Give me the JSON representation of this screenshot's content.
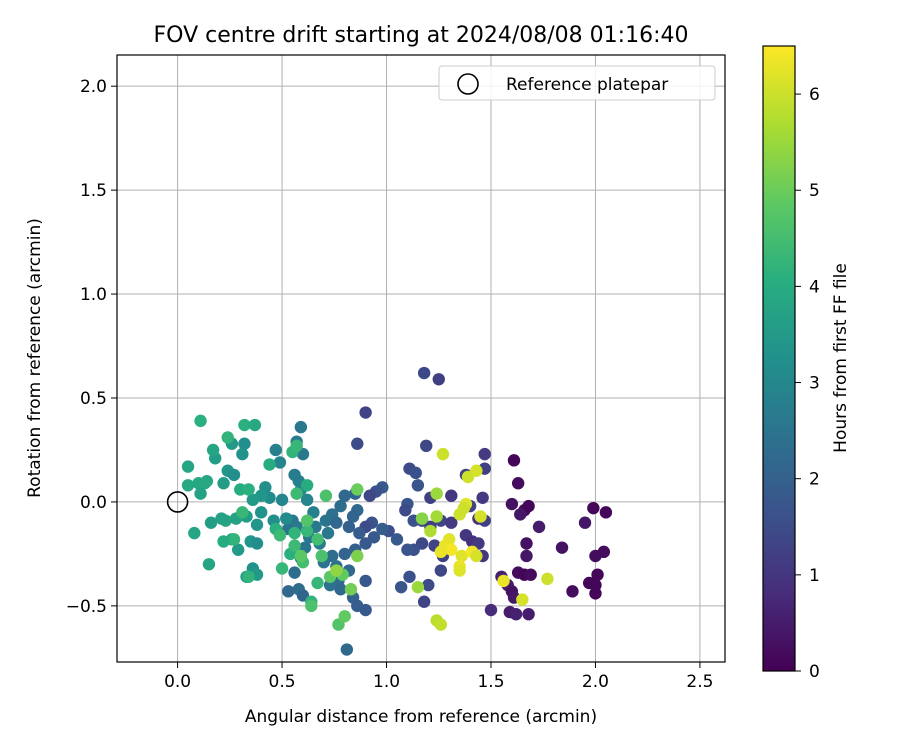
{
  "chart_data": {
    "type": "scatter",
    "title": "FOV centre drift starting at 2024/08/08 01:16:40",
    "xlabel": "Angular distance from reference (arcmin)",
    "ylabel": "Rotation from reference (arcmin)",
    "xlim": [
      -0.29,
      2.62
    ],
    "ylim": [
      -0.77,
      2.15
    ],
    "xticks": [
      0.0,
      0.5,
      1.0,
      1.5,
      2.0,
      2.5
    ],
    "xtick_labels": [
      "0.0",
      "0.5",
      "1.0",
      "1.5",
      "2.0",
      "2.5"
    ],
    "yticks": [
      -0.5,
      0.0,
      0.5,
      1.0,
      1.5,
      2.0
    ],
    "ytick_labels": [
      "−0.5",
      "0.0",
      "0.5",
      "1.0",
      "1.5",
      "2.0"
    ],
    "grid": true,
    "legend": {
      "placement": "top-right",
      "entries": [
        {
          "label": "Reference platepar",
          "marker": "open-circle",
          "color": "#000000"
        }
      ]
    },
    "reference_point": {
      "x": 0.0,
      "y": 0.0
    },
    "colorbar": {
      "label": "Hours from first FF file",
      "colormap": "viridis",
      "range": [
        0,
        6.5
      ],
      "ticks": [
        0,
        1,
        2,
        3,
        4,
        5,
        6
      ],
      "tick_labels": [
        "0",
        "1",
        "2",
        "3",
        "4",
        "5",
        "6"
      ]
    },
    "points": [
      {
        "x": 1.61,
        "y": 0.2,
        "h": 0.1
      },
      {
        "x": 1.63,
        "y": 0.09,
        "h": 0.2
      },
      {
        "x": 1.6,
        "y": -0.01,
        "h": 0.3
      },
      {
        "x": 1.66,
        "y": -0.04,
        "h": 0.2
      },
      {
        "x": 1.68,
        "y": -0.02,
        "h": 0.1
      },
      {
        "x": 1.64,
        "y": -0.06,
        "h": 0.4
      },
      {
        "x": 1.73,
        "y": -0.12,
        "h": 0.5
      },
      {
        "x": 1.67,
        "y": -0.2,
        "h": 0.3
      },
      {
        "x": 1.67,
        "y": -0.26,
        "h": 0.4
      },
      {
        "x": 1.63,
        "y": -0.34,
        "h": 0.2
      },
      {
        "x": 1.66,
        "y": -0.35,
        "h": 0.1
      },
      {
        "x": 1.69,
        "y": -0.35,
        "h": 0.2
      },
      {
        "x": 1.55,
        "y": -0.36,
        "h": 0.6
      },
      {
        "x": 1.58,
        "y": -0.4,
        "h": 0.5
      },
      {
        "x": 1.6,
        "y": -0.43,
        "h": 0.3
      },
      {
        "x": 1.61,
        "y": -0.46,
        "h": 0.4
      },
      {
        "x": 1.5,
        "y": -0.52,
        "h": 0.8
      },
      {
        "x": 1.59,
        "y": -0.53,
        "h": 0.5
      },
      {
        "x": 1.62,
        "y": -0.54,
        "h": 0.6
      },
      {
        "x": 1.68,
        "y": -0.54,
        "h": 0.5
      },
      {
        "x": 1.84,
        "y": -0.22,
        "h": 0.3
      },
      {
        "x": 1.89,
        "y": -0.43,
        "h": 0.2
      },
      {
        "x": 1.95,
        "y": -0.1,
        "h": 0.4
      },
      {
        "x": 1.99,
        "y": -0.03,
        "h": 0.1
      },
      {
        "x": 2.05,
        "y": -0.05,
        "h": 0.1
      },
      {
        "x": 2.0,
        "y": -0.26,
        "h": 0.2
      },
      {
        "x": 2.04,
        "y": -0.24,
        "h": 0.2
      },
      {
        "x": 2.01,
        "y": -0.35,
        "h": 0.1
      },
      {
        "x": 1.97,
        "y": -0.39,
        "h": 0.1
      },
      {
        "x": 2.0,
        "y": -0.4,
        "h": 0.1
      },
      {
        "x": 2.0,
        "y": -0.44,
        "h": 0.1
      },
      {
        "x": 1.18,
        "y": 0.62,
        "h": 1.4
      },
      {
        "x": 1.25,
        "y": 0.59,
        "h": 1.2
      },
      {
        "x": 0.9,
        "y": 0.43,
        "h": 1.3
      },
      {
        "x": 0.86,
        "y": 0.28,
        "h": 1.5
      },
      {
        "x": 1.19,
        "y": 0.27,
        "h": 1.4
      },
      {
        "x": 1.47,
        "y": 0.23,
        "h": 1.1
      },
      {
        "x": 1.47,
        "y": 0.16,
        "h": 1.2
      },
      {
        "x": 1.11,
        "y": 0.16,
        "h": 1.5
      },
      {
        "x": 1.14,
        "y": 0.14,
        "h": 1.6
      },
      {
        "x": 1.38,
        "y": 0.13,
        "h": 1.3
      },
      {
        "x": 1.15,
        "y": 0.08,
        "h": 1.7
      },
      {
        "x": 0.98,
        "y": 0.07,
        "h": 1.8
      },
      {
        "x": 0.95,
        "y": 0.05,
        "h": 1.6
      },
      {
        "x": 0.92,
        "y": 0.03,
        "h": 1.4
      },
      {
        "x": 1.21,
        "y": 0.02,
        "h": 1.2
      },
      {
        "x": 1.31,
        "y": 0.03,
        "h": 1.0
      },
      {
        "x": 1.4,
        "y": -0.02,
        "h": 1.3
      },
      {
        "x": 1.46,
        "y": 0.02,
        "h": 1.1
      },
      {
        "x": 1.1,
        "y": -0.01,
        "h": 1.7
      },
      {
        "x": 1.09,
        "y": -0.04,
        "h": 1.5
      },
      {
        "x": 1.17,
        "y": -0.09,
        "h": 1.4
      },
      {
        "x": 1.13,
        "y": -0.09,
        "h": 1.6
      },
      {
        "x": 1.21,
        "y": -0.12,
        "h": 1.2
      },
      {
        "x": 1.26,
        "y": -0.09,
        "h": 1.3
      },
      {
        "x": 1.31,
        "y": -0.1,
        "h": 1.1
      },
      {
        "x": 1.44,
        "y": -0.08,
        "h": 1.0
      },
      {
        "x": 1.47,
        "y": -0.09,
        "h": 1.2
      },
      {
        "x": 1.38,
        "y": -0.16,
        "h": 1.0
      },
      {
        "x": 1.41,
        "y": -0.19,
        "h": 0.9
      },
      {
        "x": 1.44,
        "y": -0.2,
        "h": 1.1
      },
      {
        "x": 1.46,
        "y": -0.26,
        "h": 1.0
      },
      {
        "x": 1.17,
        "y": -0.2,
        "h": 1.4
      },
      {
        "x": 1.23,
        "y": -0.21,
        "h": 1.3
      },
      {
        "x": 1.27,
        "y": -0.26,
        "h": 1.2
      },
      {
        "x": 1.26,
        "y": -0.33,
        "h": 1.4
      },
      {
        "x": 1.13,
        "y": -0.23,
        "h": 1.6
      },
      {
        "x": 1.1,
        "y": -0.23,
        "h": 1.7
      },
      {
        "x": 1.05,
        "y": -0.18,
        "h": 1.8
      },
      {
        "x": 1.01,
        "y": -0.14,
        "h": 1.6
      },
      {
        "x": 0.98,
        "y": -0.13,
        "h": 1.9
      },
      {
        "x": 0.93,
        "y": -0.1,
        "h": 1.7
      },
      {
        "x": 0.9,
        "y": -0.12,
        "h": 1.5
      },
      {
        "x": 0.94,
        "y": -0.17,
        "h": 1.8
      },
      {
        "x": 1.11,
        "y": -0.36,
        "h": 1.6
      },
      {
        "x": 1.07,
        "y": -0.41,
        "h": 1.7
      },
      {
        "x": 1.2,
        "y": -0.4,
        "h": 1.5
      },
      {
        "x": 1.18,
        "y": -0.48,
        "h": 1.3
      },
      {
        "x": 0.85,
        "y": 0.04,
        "h": 2.1
      },
      {
        "x": 0.86,
        "y": -0.04,
        "h": 2.2
      },
      {
        "x": 0.84,
        "y": -0.07,
        "h": 2.1
      },
      {
        "x": 0.8,
        "y": 0.03,
        "h": 2.2
      },
      {
        "x": 0.78,
        "y": -0.02,
        "h": 2.3
      },
      {
        "x": 0.74,
        "y": -0.06,
        "h": 2.4
      },
      {
        "x": 0.71,
        "y": -0.09,
        "h": 2.5
      },
      {
        "x": 0.76,
        "y": -0.1,
        "h": 2.2
      },
      {
        "x": 0.82,
        "y": -0.12,
        "h": 2.0
      },
      {
        "x": 0.87,
        "y": -0.15,
        "h": 1.9
      },
      {
        "x": 0.9,
        "y": -0.2,
        "h": 1.8
      },
      {
        "x": 0.85,
        "y": -0.23,
        "h": 2.0
      },
      {
        "x": 0.8,
        "y": -0.25,
        "h": 2.1
      },
      {
        "x": 0.74,
        "y": -0.26,
        "h": 2.3
      },
      {
        "x": 0.7,
        "y": -0.29,
        "h": 2.5
      },
      {
        "x": 0.76,
        "y": -0.31,
        "h": 2.4
      },
      {
        "x": 0.82,
        "y": -0.33,
        "h": 2.2
      },
      {
        "x": 0.77,
        "y": -0.38,
        "h": 2.3
      },
      {
        "x": 0.73,
        "y": -0.4,
        "h": 2.4
      },
      {
        "x": 0.78,
        "y": -0.42,
        "h": 2.2
      },
      {
        "x": 0.84,
        "y": -0.46,
        "h": 2.0
      },
      {
        "x": 0.86,
        "y": -0.5,
        "h": 1.9
      },
      {
        "x": 0.9,
        "y": -0.52,
        "h": 1.8
      },
      {
        "x": 0.9,
        "y": -0.38,
        "h": 1.8
      },
      {
        "x": 0.66,
        "y": -0.12,
        "h": 2.6
      },
      {
        "x": 0.63,
        "y": -0.17,
        "h": 2.6
      },
      {
        "x": 0.61,
        "y": -0.22,
        "h": 2.5
      },
      {
        "x": 0.59,
        "y": -0.27,
        "h": 2.4
      },
      {
        "x": 0.57,
        "y": -0.12,
        "h": 2.7
      },
      {
        "x": 0.55,
        "y": -0.09,
        "h": 2.6
      },
      {
        "x": 0.53,
        "y": -0.13,
        "h": 2.5
      },
      {
        "x": 0.56,
        "y": -0.34,
        "h": 2.3
      },
      {
        "x": 0.58,
        "y": -0.42,
        "h": 2.3
      },
      {
        "x": 0.6,
        "y": -0.45,
        "h": 2.1
      },
      {
        "x": 0.53,
        "y": -0.43,
        "h": 2.2
      },
      {
        "x": 0.72,
        "y": -0.15,
        "h": 2.6
      },
      {
        "x": 0.68,
        "y": -0.2,
        "h": 2.7
      },
      {
        "x": 0.65,
        "y": -0.05,
        "h": 2.8
      },
      {
        "x": 0.62,
        "y": 0.01,
        "h": 2.9
      },
      {
        "x": 0.59,
        "y": 0.06,
        "h": 2.9
      },
      {
        "x": 0.58,
        "y": 0.1,
        "h": 2.8
      },
      {
        "x": 0.56,
        "y": 0.13,
        "h": 2.7
      },
      {
        "x": 0.6,
        "y": 0.23,
        "h": 2.6
      },
      {
        "x": 0.59,
        "y": 0.36,
        "h": 2.6
      },
      {
        "x": 0.57,
        "y": 0.29,
        "h": 2.7
      },
      {
        "x": 0.49,
        "y": 0.19,
        "h": 2.9
      },
      {
        "x": 0.47,
        "y": 0.25,
        "h": 2.8
      },
      {
        "x": 0.5,
        "y": 0.01,
        "h": 3.0
      },
      {
        "x": 0.52,
        "y": -0.08,
        "h": 3.1
      },
      {
        "x": 0.46,
        "y": -0.09,
        "h": 3.2
      },
      {
        "x": 0.44,
        "y": 0.02,
        "h": 3.1
      },
      {
        "x": 0.42,
        "y": 0.07,
        "h": 3.2
      },
      {
        "x": 0.4,
        "y": -0.05,
        "h": 3.3
      },
      {
        "x": 0.38,
        "y": -0.11,
        "h": 3.4
      },
      {
        "x": 0.4,
        "y": 0.03,
        "h": 3.4
      },
      {
        "x": 0.36,
        "y": 0.01,
        "h": 3.5
      },
      {
        "x": 0.33,
        "y": -0.07,
        "h": 3.6
      },
      {
        "x": 0.35,
        "y": -0.19,
        "h": 3.4
      },
      {
        "x": 0.38,
        "y": -0.2,
        "h": 3.2
      },
      {
        "x": 0.36,
        "y": -0.32,
        "h": 3.3
      },
      {
        "x": 0.38,
        "y": -0.35,
        "h": 3.5
      },
      {
        "x": 0.33,
        "y": -0.36,
        "h": 3.6
      },
      {
        "x": 0.32,
        "y": 0.28,
        "h": 3.2
      },
      {
        "x": 0.31,
        "y": 0.23,
        "h": 3.3
      },
      {
        "x": 0.26,
        "y": 0.28,
        "h": 3.5
      },
      {
        "x": 0.24,
        "y": 0.15,
        "h": 3.4
      },
      {
        "x": 0.27,
        "y": 0.13,
        "h": 3.2
      },
      {
        "x": 0.22,
        "y": 0.09,
        "h": 3.6
      },
      {
        "x": 0.18,
        "y": 0.21,
        "h": 3.6
      },
      {
        "x": 0.17,
        "y": 0.25,
        "h": 3.8
      },
      {
        "x": 0.26,
        "y": -0.18,
        "h": 3.7
      },
      {
        "x": 0.29,
        "y": -0.23,
        "h": 3.5
      },
      {
        "x": 0.23,
        "y": -0.09,
        "h": 3.8
      },
      {
        "x": 0.28,
        "y": -0.08,
        "h": 3.7
      },
      {
        "x": 0.14,
        "y": 0.1,
        "h": 3.8
      },
      {
        "x": 0.13,
        "y": 0.09,
        "h": 3.9
      },
      {
        "x": 0.05,
        "y": 0.08,
        "h": 3.9
      },
      {
        "x": 0.05,
        "y": 0.17,
        "h": 3.8
      },
      {
        "x": 0.1,
        "y": 0.09,
        "h": 3.9
      },
      {
        "x": 0.11,
        "y": 0.04,
        "h": 3.7
      },
      {
        "x": 0.08,
        "y": -0.15,
        "h": 3.8
      },
      {
        "x": 0.16,
        "y": -0.1,
        "h": 3.6
      },
      {
        "x": 0.21,
        "y": -0.08,
        "h": 3.7
      },
      {
        "x": 0.15,
        "y": -0.3,
        "h": 3.8
      },
      {
        "x": 0.3,
        "y": 0.06,
        "h": 4.0
      },
      {
        "x": 0.34,
        "y": 0.06,
        "h": 4.1
      },
      {
        "x": 0.32,
        "y": 0.37,
        "h": 4.1
      },
      {
        "x": 0.37,
        "y": 0.37,
        "h": 3.9
      },
      {
        "x": 0.24,
        "y": 0.31,
        "h": 4.2
      },
      {
        "x": 0.27,
        "y": -0.18,
        "h": 4.2
      },
      {
        "x": 0.22,
        "y": -0.19,
        "h": 4.0
      },
      {
        "x": 0.31,
        "y": -0.05,
        "h": 4.3
      },
      {
        "x": 0.11,
        "y": 0.39,
        "h": 4.1
      },
      {
        "x": 0.34,
        "y": -0.36,
        "h": 4.2
      },
      {
        "x": 0.44,
        "y": 0.18,
        "h": 4.0
      },
      {
        "x": 0.55,
        "y": 0.24,
        "h": 4.2
      },
      {
        "x": 0.57,
        "y": 0.27,
        "h": 4.3
      },
      {
        "x": 0.62,
        "y": 0.08,
        "h": 4.0
      },
      {
        "x": 0.57,
        "y": 0.04,
        "h": 4.4
      },
      {
        "x": 0.47,
        "y": -0.13,
        "h": 4.1
      },
      {
        "x": 0.49,
        "y": -0.16,
        "h": 4.4
      },
      {
        "x": 0.56,
        "y": -0.15,
        "h": 4.2
      },
      {
        "x": 0.62,
        "y": -0.14,
        "h": 4.3
      },
      {
        "x": 0.67,
        "y": -0.18,
        "h": 4.5
      },
      {
        "x": 0.54,
        "y": -0.25,
        "h": 4.1
      },
      {
        "x": 0.56,
        "y": -0.21,
        "h": 4.4
      },
      {
        "x": 0.5,
        "y": -0.32,
        "h": 4.3
      },
      {
        "x": 0.6,
        "y": -0.29,
        "h": 4.5
      },
      {
        "x": 0.64,
        "y": -0.48,
        "h": 4.2
      },
      {
        "x": 0.67,
        "y": -0.39,
        "h": 4.3
      },
      {
        "x": 0.71,
        "y": 0.03,
        "h": 4.6
      },
      {
        "x": 0.69,
        "y": -0.26,
        "h": 4.6
      },
      {
        "x": 0.62,
        "y": -0.09,
        "h": 4.7
      },
      {
        "x": 0.59,
        "y": -0.26,
        "h": 4.8
      },
      {
        "x": 0.64,
        "y": -0.5,
        "h": 4.6
      },
      {
        "x": 0.73,
        "y": -0.36,
        "h": 4.8
      },
      {
        "x": 0.79,
        "y": -0.35,
        "h": 4.9
      },
      {
        "x": 0.77,
        "y": -0.59,
        "h": 4.7
      },
      {
        "x": 0.8,
        "y": -0.55,
        "h": 4.9
      },
      {
        "x": 0.81,
        "y": -0.71,
        "h": 2.2
      },
      {
        "x": 0.86,
        "y": 0.06,
        "h": 5.0
      },
      {
        "x": 0.83,
        "y": -0.42,
        "h": 5.1
      },
      {
        "x": 0.86,
        "y": -0.26,
        "h": 5.2
      },
      {
        "x": 0.76,
        "y": -0.33,
        "h": 5.4
      },
      {
        "x": 1.17,
        "y": -0.08,
        "h": 5.3
      },
      {
        "x": 1.24,
        "y": 0.04,
        "h": 5.5
      },
      {
        "x": 1.24,
        "y": -0.07,
        "h": 5.6
      },
      {
        "x": 1.21,
        "y": -0.14,
        "h": 5.7
      },
      {
        "x": 1.15,
        "y": -0.41,
        "h": 5.5
      },
      {
        "x": 1.24,
        "y": -0.57,
        "h": 5.8
      },
      {
        "x": 1.26,
        "y": -0.59,
        "h": 5.9
      },
      {
        "x": 1.27,
        "y": 0.23,
        "h": 6.0
      },
      {
        "x": 1.39,
        "y": 0.12,
        "h": 6.0
      },
      {
        "x": 1.43,
        "y": 0.15,
        "h": 6.1
      },
      {
        "x": 1.35,
        "y": -0.06,
        "h": 6.0
      },
      {
        "x": 1.38,
        "y": -0.01,
        "h": 6.2
      },
      {
        "x": 1.37,
        "y": -0.03,
        "h": 6.0
      },
      {
        "x": 1.45,
        "y": -0.07,
        "h": 6.1
      },
      {
        "x": 1.3,
        "y": -0.18,
        "h": 6.2
      },
      {
        "x": 1.28,
        "y": -0.21,
        "h": 6.3
      },
      {
        "x": 1.31,
        "y": -0.23,
        "h": 6.4
      },
      {
        "x": 1.26,
        "y": -0.24,
        "h": 6.3
      },
      {
        "x": 1.36,
        "y": -0.26,
        "h": 6.2
      },
      {
        "x": 1.41,
        "y": -0.24,
        "h": 6.4
      },
      {
        "x": 1.43,
        "y": -0.26,
        "h": 6.1
      },
      {
        "x": 1.35,
        "y": -0.31,
        "h": 6.3
      },
      {
        "x": 1.35,
        "y": -0.33,
        "h": 6.2
      },
      {
        "x": 1.56,
        "y": -0.38,
        "h": 6.3
      },
      {
        "x": 1.65,
        "y": -0.47,
        "h": 6.1
      },
      {
        "x": 1.77,
        "y": -0.37,
        "h": 6.0
      }
    ]
  }
}
